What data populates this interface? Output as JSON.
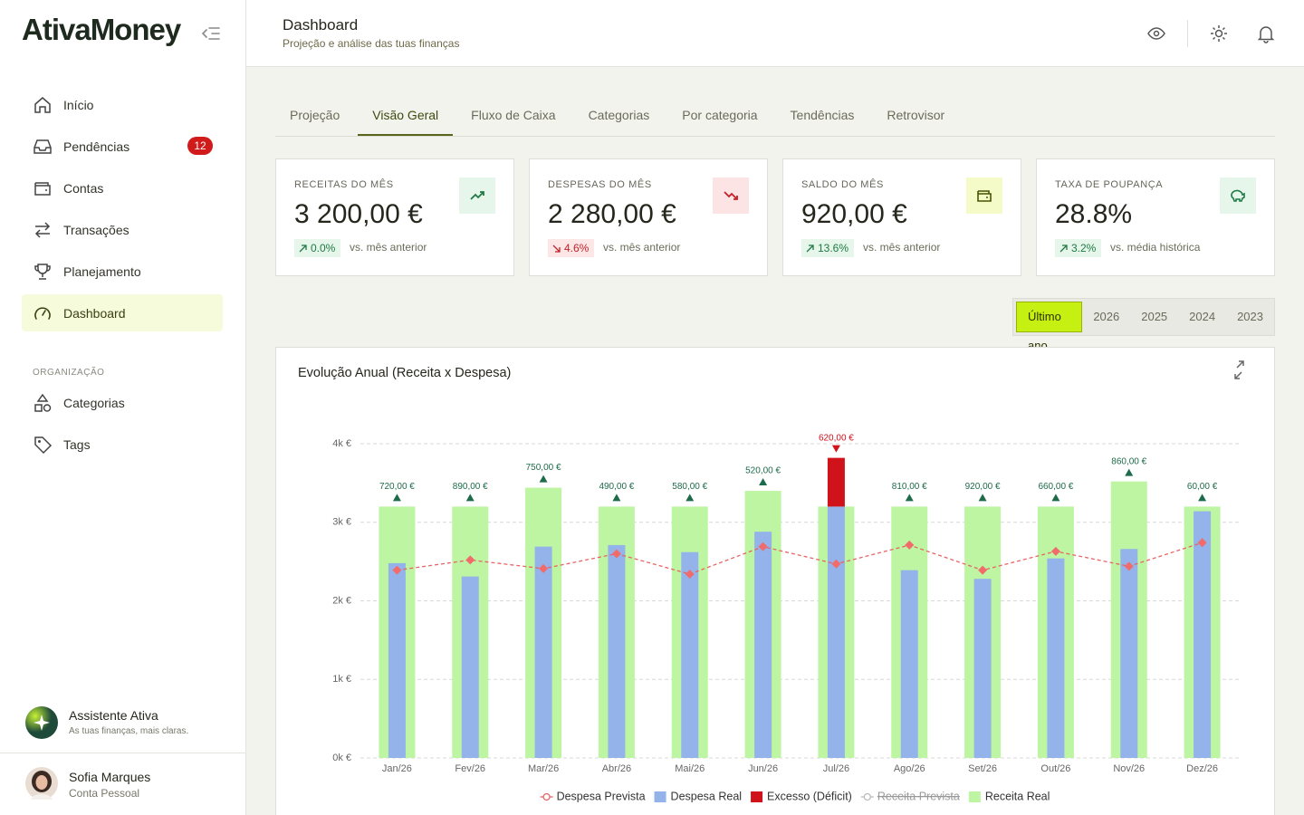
{
  "sidebar": {
    "logo": "AtivaMoney",
    "nav": [
      {
        "label": "Início"
      },
      {
        "label": "Pendências",
        "badge": "12"
      },
      {
        "label": "Contas"
      },
      {
        "label": "Transações"
      },
      {
        "label": "Planejamento"
      },
      {
        "label": "Dashboard"
      }
    ],
    "active": 5,
    "section": "ORGANIZAÇÃO",
    "org_nav": [
      {
        "label": "Categorias"
      },
      {
        "label": "Tags"
      }
    ],
    "assistant": {
      "title": "Assistente Ativa",
      "subtitle": "As tuas finanças, mais claras."
    },
    "user": {
      "name": "Sofia Marques",
      "role": "Conta Pessoal"
    }
  },
  "header": {
    "title": "Dashboard",
    "subtitle": "Projeção e análise das tuas finanças"
  },
  "tabs": {
    "items": [
      "Projeção",
      "Visão Geral",
      "Fluxo de Caixa",
      "Categorias",
      "Por categoria",
      "Tendências",
      "Retrovisor"
    ],
    "active": 1
  },
  "kpis": [
    {
      "label": "RECEITAS DO MÊS",
      "value": "3 200,00 €",
      "change": "0.0%",
      "note": "vs. mês anterior",
      "trend": "up"
    },
    {
      "label": "DESPESAS DO MÊS",
      "value": "2 280,00 €",
      "change": "4.6%",
      "note": "vs. mês anterior",
      "trend": "down"
    },
    {
      "label": "SALDO DO MÊS",
      "value": "920,00 €",
      "change": "13.6%",
      "note": "vs. mês anterior",
      "trend": "up"
    },
    {
      "label": "TAXA DE POUPANÇA",
      "value": "28.8%",
      "change": "3.2%",
      "note": "vs. média histórica",
      "trend": "up"
    }
  ],
  "periods": {
    "items": [
      "Último ano",
      "2026",
      "2025",
      "2024",
      "2023"
    ],
    "active": 0
  },
  "chart_data": {
    "type": "bar",
    "title": "Evolução Anual (Receita x Despesa)",
    "categories": [
      "Jan/26",
      "Fev/26",
      "Mar/26",
      "Abr/26",
      "Mai/26",
      "Jun/26",
      "Jul/26",
      "Ago/26",
      "Set/26",
      "Out/26",
      "Nov/26",
      "Dez/26"
    ],
    "series": [
      {
        "name": "Despesa Prevista",
        "type": "line",
        "color": "#e86464",
        "values": [
          2390,
          2520,
          2410,
          2600,
          2340,
          2690,
          2470,
          2710,
          2390,
          2630,
          2440,
          2740
        ]
      },
      {
        "name": "Despesa Real",
        "type": "bar",
        "color": "#93b3ea",
        "values": [
          2480,
          2310,
          2690,
          2710,
          2620,
          2880,
          3200,
          2390,
          2280,
          2540,
          2660,
          3140
        ]
      },
      {
        "name": "Excesso (Déficit)",
        "type": "bar",
        "stacked_on": 1,
        "color": "#d0121b",
        "values": [
          null,
          null,
          null,
          null,
          null,
          null,
          620,
          null,
          null,
          null,
          null,
          null
        ],
        "value_labels": [
          null,
          null,
          null,
          null,
          null,
          null,
          "620,00 €",
          null,
          null,
          null,
          null,
          null
        ]
      },
      {
        "name": "Receita Prevista",
        "type": "line",
        "color": "#bbbbbb",
        "visible": false
      },
      {
        "name": "Receita Real",
        "type": "bar",
        "color": "#bdf5a2",
        "values": [
          3200,
          3200,
          3440,
          3200,
          3200,
          3400,
          3200,
          3200,
          3200,
          3200,
          3520,
          3200
        ]
      }
    ],
    "margin": {
      "color": "#1d6b4a",
      "values": [
        720,
        890,
        750,
        490,
        580,
        520,
        null,
        810,
        920,
        660,
        860,
        60
      ],
      "value_labels": [
        "720,00 €",
        "890,00 €",
        "750,00 €",
        "490,00 €",
        "580,00 €",
        "520,00 €",
        null,
        "810,00 €",
        "920,00 €",
        "660,00 €",
        "860,00 €",
        "60,00 €"
      ]
    },
    "ylim": [
      0,
      4000
    ],
    "yticks": [
      {
        "value": 0,
        "label": "0k €"
      },
      {
        "value": 1000,
        "label": "1k €"
      },
      {
        "value": 2000,
        "label": "2k €"
      },
      {
        "value": 3000,
        "label": "3k €"
      },
      {
        "value": 4000,
        "label": "4k €"
      }
    ],
    "grid": true,
    "legend": "bottom"
  }
}
